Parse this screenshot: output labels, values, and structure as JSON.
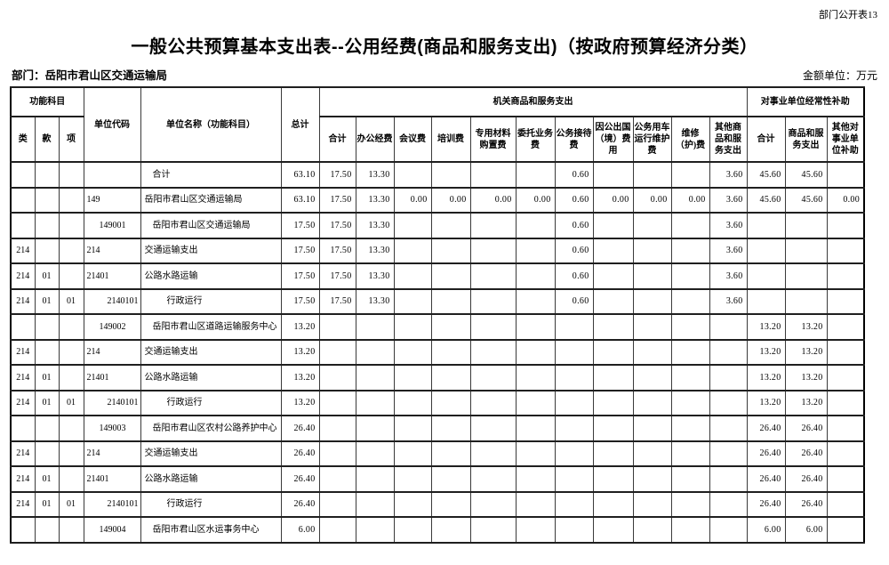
{
  "header": {
    "doc_ref": "部门公开表13",
    "title": "一般公共预算基本支出表--公用经费(商品和服务支出)（按政府预算经济分类）",
    "department": "部门：岳阳市君山区交通运输局",
    "amount_unit": "金额单位：万元"
  },
  "table": {
    "headers": {
      "function_group": "功能科目",
      "function_cols": [
        "类",
        "款",
        "项"
      ],
      "unit_code": "单位代码",
      "unit_name": "单位名称（功能科目）",
      "total": "总计",
      "agency_group": "机关商品和服务支出",
      "agency_cols": [
        "合计",
        "办公经费",
        "会议费",
        "培训费",
        "专用材料购置费",
        "委托业务费",
        "公务接待费",
        "因公出国（境）费用",
        "公务用车运行维护费",
        "维修（护)费",
        "其他商品和服务支出"
      ],
      "subsidy_group": "对事业单位经常性补助",
      "subsidy_cols": [
        "合计",
        "商品和服务支出",
        "其他对事业单位补助"
      ]
    },
    "value_columns": [
      "总计",
      "机关合计",
      "办公经费",
      "会议费",
      "培训费",
      "专用材料购置费",
      "委托业务费",
      "公务接待费",
      "因公出国（境）费用",
      "公务用车运行维护费",
      "维修（护)费",
      "其他商品和服务支出",
      "对事业单位合计",
      "商品和服务支出",
      "其他对事业单位补助"
    ],
    "rows": [
      {
        "lei": "",
        "kuan": "",
        "xiang": "",
        "code": "",
        "code_lv": 0,
        "name": "合计",
        "name_lv": 1,
        "vals": [
          "63.10",
          "17.50",
          "13.30",
          "",
          "",
          "",
          "",
          "0.60",
          "",
          "",
          "",
          "3.60",
          "45.60",
          "45.60",
          ""
        ]
      },
      {
        "lei": "",
        "kuan": "",
        "xiang": "",
        "code": "149",
        "code_lv": 0,
        "name": "岳阳市君山区交通运输局",
        "name_lv": 0,
        "vals": [
          "63.10",
          "17.50",
          "13.30",
          "0.00",
          "0.00",
          "0.00",
          "0.00",
          "0.60",
          "0.00",
          "0.00",
          "0.00",
          "3.60",
          "45.60",
          "45.60",
          "0.00"
        ]
      },
      {
        "lei": "",
        "kuan": "",
        "xiang": "",
        "code": "149001",
        "code_lv": 1,
        "name": "岳阳市君山区交通运输局",
        "name_lv": 1,
        "vals": [
          "17.50",
          "17.50",
          "13.30",
          "",
          "",
          "",
          "",
          "0.60",
          "",
          "",
          "",
          "3.60",
          "",
          "",
          ""
        ]
      },
      {
        "lei": "214",
        "kuan": "",
        "xiang": "",
        "code": "214",
        "code_lv": 0,
        "name": "交通运输支出",
        "name_lv": 0,
        "vals": [
          "17.50",
          "17.50",
          "13.30",
          "",
          "",
          "",
          "",
          "0.60",
          "",
          "",
          "",
          "3.60",
          "",
          "",
          ""
        ]
      },
      {
        "lei": "214",
        "kuan": "01",
        "xiang": "",
        "code": "21401",
        "code_lv": 0,
        "name": "公路水路运输",
        "name_lv": 0,
        "vals": [
          "17.50",
          "17.50",
          "13.30",
          "",
          "",
          "",
          "",
          "0.60",
          "",
          "",
          "",
          "3.60",
          "",
          "",
          ""
        ]
      },
      {
        "lei": "214",
        "kuan": "01",
        "xiang": "01",
        "code": "2140101",
        "code_lv": 2,
        "name": "行政运行",
        "name_lv": 2,
        "vals": [
          "17.50",
          "17.50",
          "13.30",
          "",
          "",
          "",
          "",
          "0.60",
          "",
          "",
          "",
          "3.60",
          "",
          "",
          ""
        ]
      },
      {
        "lei": "",
        "kuan": "",
        "xiang": "",
        "code": "149002",
        "code_lv": 1,
        "name": "岳阳市君山区道路运输服务中心",
        "name_lv": 1,
        "vals": [
          "13.20",
          "",
          "",
          "",
          "",
          "",
          "",
          "",
          "",
          "",
          "",
          "",
          "13.20",
          "13.20",
          ""
        ]
      },
      {
        "lei": "214",
        "kuan": "",
        "xiang": "",
        "code": "214",
        "code_lv": 0,
        "name": "交通运输支出",
        "name_lv": 0,
        "vals": [
          "13.20",
          "",
          "",
          "",
          "",
          "",
          "",
          "",
          "",
          "",
          "",
          "",
          "13.20",
          "13.20",
          ""
        ]
      },
      {
        "lei": "214",
        "kuan": "01",
        "xiang": "",
        "code": "21401",
        "code_lv": 0,
        "name": "公路水路运输",
        "name_lv": 0,
        "vals": [
          "13.20",
          "",
          "",
          "",
          "",
          "",
          "",
          "",
          "",
          "",
          "",
          "",
          "13.20",
          "13.20",
          ""
        ]
      },
      {
        "lei": "214",
        "kuan": "01",
        "xiang": "01",
        "code": "2140101",
        "code_lv": 2,
        "name": "行政运行",
        "name_lv": 2,
        "vals": [
          "13.20",
          "",
          "",
          "",
          "",
          "",
          "",
          "",
          "",
          "",
          "",
          "",
          "13.20",
          "13.20",
          ""
        ]
      },
      {
        "lei": "",
        "kuan": "",
        "xiang": "",
        "code": "149003",
        "code_lv": 1,
        "name": "岳阳市君山区农村公路养护中心",
        "name_lv": 1,
        "vals": [
          "26.40",
          "",
          "",
          "",
          "",
          "",
          "",
          "",
          "",
          "",
          "",
          "",
          "26.40",
          "26.40",
          ""
        ]
      },
      {
        "lei": "214",
        "kuan": "",
        "xiang": "",
        "code": "214",
        "code_lv": 0,
        "name": "交通运输支出",
        "name_lv": 0,
        "vals": [
          "26.40",
          "",
          "",
          "",
          "",
          "",
          "",
          "",
          "",
          "",
          "",
          "",
          "26.40",
          "26.40",
          ""
        ]
      },
      {
        "lei": "214",
        "kuan": "01",
        "xiang": "",
        "code": "21401",
        "code_lv": 0,
        "name": "公路水路运输",
        "name_lv": 0,
        "vals": [
          "26.40",
          "",
          "",
          "",
          "",
          "",
          "",
          "",
          "",
          "",
          "",
          "",
          "26.40",
          "26.40",
          ""
        ]
      },
      {
        "lei": "214",
        "kuan": "01",
        "xiang": "01",
        "code": "2140101",
        "code_lv": 2,
        "name": "行政运行",
        "name_lv": 2,
        "vals": [
          "26.40",
          "",
          "",
          "",
          "",
          "",
          "",
          "",
          "",
          "",
          "",
          "",
          "26.40",
          "26.40",
          ""
        ]
      },
      {
        "lei": "",
        "kuan": "",
        "xiang": "",
        "code": "149004",
        "code_lv": 1,
        "name": "岳阳市君山区水运事务中心",
        "name_lv": 1,
        "vals": [
          "6.00",
          "",
          "",
          "",
          "",
          "",
          "",
          "",
          "",
          "",
          "",
          "",
          "6.00",
          "6.00",
          ""
        ]
      }
    ]
  }
}
